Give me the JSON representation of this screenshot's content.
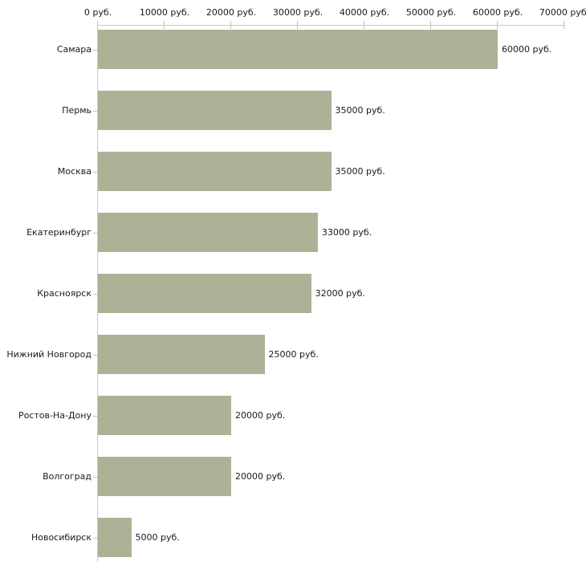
{
  "chart_data": {
    "type": "bar",
    "orientation": "horizontal",
    "title": "",
    "xlabel": "",
    "ylabel": "",
    "unit": "руб.",
    "categories": [
      "Самара",
      "Пермь",
      "Москва",
      "Екатеринбург",
      "Красноярск",
      "Нижний Новгород",
      "Ростов-На-Дону",
      "Волгоград",
      "Новосибирск"
    ],
    "values": [
      60000,
      35000,
      35000,
      33000,
      32000,
      25000,
      20000,
      20000,
      5000
    ],
    "value_labels": [
      "60000 руб.",
      "35000 руб.",
      "35000 руб.",
      "33000 руб.",
      "32000 руб.",
      "25000 руб.",
      "20000 руб.",
      "20000 руб.",
      "5000 руб."
    ],
    "x_axis": {
      "position": "top",
      "range": [
        0,
        70000
      ],
      "ticks": [
        0,
        10000,
        20000,
        30000,
        40000,
        50000,
        60000,
        70000
      ],
      "tick_labels": [
        "0 руб.",
        "10000 руб.",
        "20000 руб.",
        "30000 руб.",
        "40000 руб.",
        "50000 руб.",
        "60000 руб.",
        "70000 руб."
      ]
    },
    "grid": false,
    "legend": null,
    "colors": {
      "bar": "#acb296",
      "axis_line": "#c9c9c9",
      "tick": "#c6c6a2",
      "text": "#1a1a1a",
      "background": "#ffffff"
    }
  }
}
